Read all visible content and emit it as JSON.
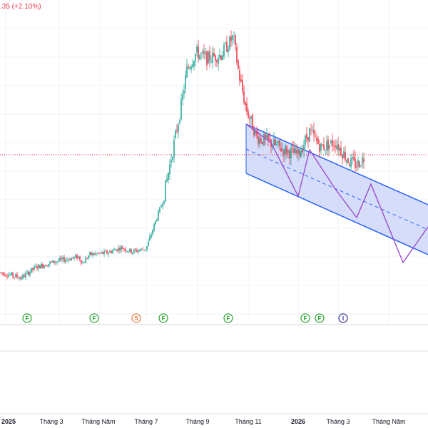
{
  "header": {
    "change_text": ".35 (+2.10%)"
  },
  "colors": {
    "up": "#26a69a",
    "down": "#f23645",
    "channel_line": "#2962ff",
    "channel_fill": "#c8d2f8",
    "projection": "#9c4dcc",
    "last_price_line": "#f23645",
    "event_f": "#22a12a",
    "event_s": "#e8763b",
    "event_i": "#2d2d8f"
  },
  "chart_data": {
    "type": "candlestick",
    "symbol_change": ".35 (+2.10%)",
    "x_axis_labels": [
      "2025",
      "Tháng 3",
      "Tháng Năm",
      "Tháng 7",
      "Tháng 9",
      "Tháng 11",
      "2026",
      "Tháng 3",
      "Tháng Năm"
    ],
    "x_axis_bold": [
      true,
      false,
      false,
      false,
      false,
      false,
      true,
      false,
      false
    ],
    "price_trend": [
      {
        "t": 0,
        "p": 22.6
      },
      {
        "t": 18,
        "p": 22.3
      },
      {
        "t": 30,
        "p": 22.1
      },
      {
        "t": 50,
        "p": 23.1
      },
      {
        "t": 80,
        "p": 23.7
      },
      {
        "t": 110,
        "p": 24.1
      },
      {
        "t": 116,
        "p": 23.5
      },
      {
        "t": 125,
        "p": 24.3
      },
      {
        "t": 150,
        "p": 24.5
      },
      {
        "t": 170,
        "p": 25.0
      },
      {
        "t": 185,
        "p": 24.6
      },
      {
        "t": 205,
        "p": 24.9
      },
      {
        "t": 215,
        "p": 26.9
      },
      {
        "t": 228,
        "p": 29.4
      },
      {
        "t": 240,
        "p": 33.6
      },
      {
        "t": 252,
        "p": 37.8
      },
      {
        "t": 262,
        "p": 42.0
      },
      {
        "t": 275,
        "p": 43.7
      },
      {
        "t": 290,
        "p": 43.1
      },
      {
        "t": 310,
        "p": 43.5
      },
      {
        "t": 327,
        "p": 45.2
      },
      {
        "t": 335,
        "p": 41.6
      },
      {
        "t": 345,
        "p": 38.3
      },
      {
        "t": 360,
        "p": 35.6
      },
      {
        "t": 380,
        "p": 35.0
      },
      {
        "t": 400,
        "p": 34.3
      },
      {
        "t": 418,
        "p": 33.9
      },
      {
        "t": 434,
        "p": 36.1
      },
      {
        "t": 450,
        "p": 34.6
      },
      {
        "t": 470,
        "p": 35.1
      },
      {
        "t": 490,
        "p": 33.2
      },
      {
        "t": 500,
        "p": 32.9
      },
      {
        "t": 510,
        "p": 33.6
      }
    ],
    "last_price": 33.9,
    "channel": {
      "type": "descending parallel channel"
    },
    "projection": {
      "type": "zigzag forecast path"
    },
    "events": [
      "F",
      "F",
      "S",
      "F",
      "F",
      "F",
      "F",
      "I"
    ],
    "grid": true
  }
}
